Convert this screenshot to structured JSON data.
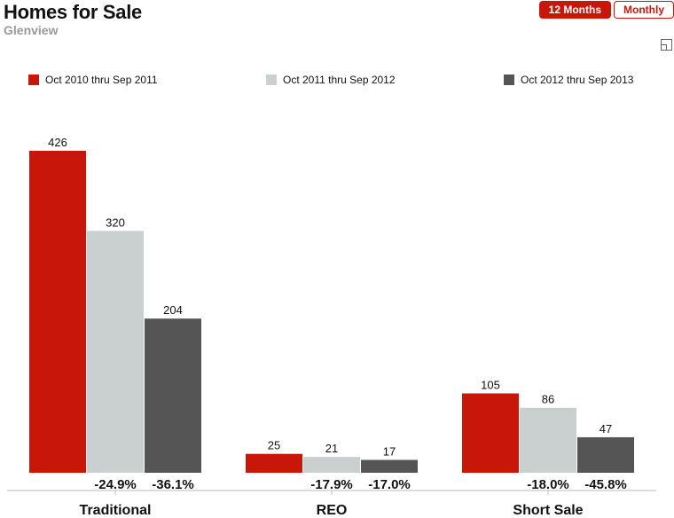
{
  "header": {
    "title": "Homes for Sale",
    "subtitle": "Glenview"
  },
  "tabs": [
    {
      "label": "12 Months",
      "active": true
    },
    {
      "label": "Monthly",
      "active": false
    }
  ],
  "icons": {
    "expand": "expand-icon"
  },
  "colors": {
    "accent": "#c8170a",
    "series": [
      "#c8170a",
      "#c9d0cf",
      "#555555"
    ]
  },
  "chart_data": {
    "type": "bar",
    "title": "Homes for Sale",
    "subtitle": "Glenview",
    "categories": [
      "Traditional",
      "REO",
      "Short Sale"
    ],
    "series": [
      {
        "name": "Oct 2010 thru Sep 2011",
        "values": [
          426,
          25,
          105
        ],
        "color": "#c8170a"
      },
      {
        "name": "Oct 2011 thru Sep 2012",
        "values": [
          320,
          21,
          86
        ],
        "color": "#c9d0cf"
      },
      {
        "name": "Oct 2012 thru Sep 2013",
        "values": [
          204,
          17,
          47
        ],
        "color": "#555555"
      }
    ],
    "changes": [
      [
        "-24.9%",
        "-36.1%"
      ],
      [
        "-17.9%",
        "-17.0%"
      ],
      [
        "-18.0%",
        "-45.8%"
      ]
    ],
    "ylim": [
      0,
      426
    ],
    "legend_position": "top",
    "grid": false
  }
}
